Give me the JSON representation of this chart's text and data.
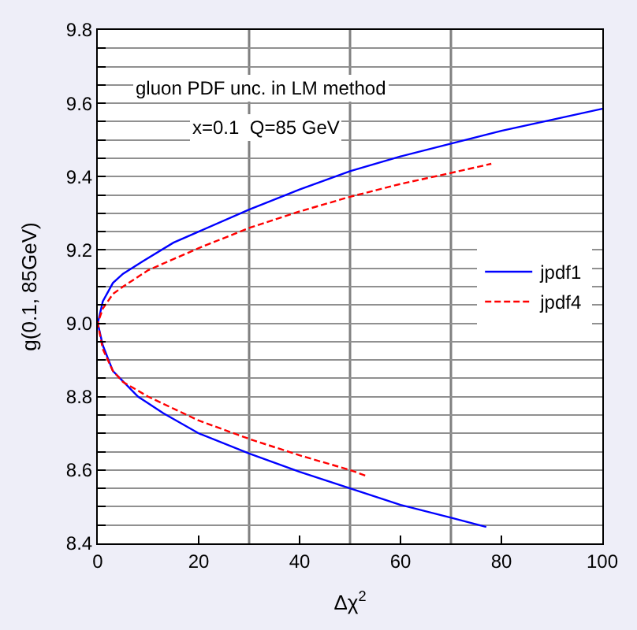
{
  "chart_data": {
    "type": "line",
    "xlabel": "Δχ$^{2}$",
    "ylabel": "g(0.1, 85GeV)",
    "annotations": [
      "gluon PDF unc. in LM method",
      "x=0.1  Q=85 GeV"
    ],
    "series": [
      {
        "name": "jpdf1",
        "color": "#0000ff",
        "line_style": "solid",
        "x": [
          77,
          70,
          60,
          50,
          40,
          30,
          20,
          13,
          8,
          3,
          1,
          0,
          1,
          3,
          5,
          9,
          15,
          20,
          30,
          40,
          50,
          60,
          70,
          80,
          90,
          100
        ],
        "values": [
          8.445,
          8.47,
          8.505,
          8.55,
          8.595,
          8.645,
          8.7,
          8.755,
          8.8,
          8.87,
          8.94,
          9.0,
          9.06,
          9.11,
          9.135,
          9.17,
          9.22,
          9.25,
          9.31,
          9.365,
          9.415,
          9.455,
          9.49,
          9.525,
          9.555,
          9.585
        ]
      },
      {
        "name": "jpdf4",
        "color": "#ff0000",
        "line_style": "dashed",
        "x": [
          53,
          50,
          40,
          30,
          20,
          10,
          5,
          3,
          1,
          0,
          1,
          3,
          5,
          10,
          20,
          30,
          40,
          50,
          60,
          70,
          78
        ],
        "values": [
          8.585,
          8.6,
          8.64,
          8.685,
          8.735,
          8.8,
          8.84,
          8.87,
          8.93,
          9.0,
          9.04,
          9.08,
          9.1,
          9.145,
          9.205,
          9.26,
          9.305,
          9.345,
          9.38,
          9.41,
          9.435
        ]
      }
    ],
    "xlim": [
      0,
      100
    ],
    "xticks": [
      0,
      20,
      40,
      60,
      80,
      100
    ],
    "ylim": [
      8.4,
      9.8
    ],
    "yticks": [
      8.4,
      {
        "value": 8.45,
        "label": null
      },
      {
        "value": 8.5,
        "label": null
      },
      {
        "value": 8.55,
        "label": null
      },
      8.6,
      {
        "value": 8.65,
        "label": null
      },
      {
        "value": 8.7,
        "label": null
      },
      {
        "value": 8.75,
        "label": null
      },
      8.8,
      {
        "value": 8.85,
        "label": null
      },
      {
        "value": 8.9,
        "label": null
      },
      {
        "value": 8.95,
        "label": null
      },
      {
        "value": 9.0,
        "label": "9.0"
      },
      {
        "value": 9.05,
        "label": null
      },
      {
        "value": 9.1,
        "label": null
      },
      {
        "value": 9.15,
        "label": null
      },
      9.2,
      {
        "value": 9.25,
        "label": null
      },
      {
        "value": 9.3,
        "label": null
      },
      {
        "value": 9.35,
        "label": null
      },
      9.4,
      {
        "value": 9.45,
        "label": null
      },
      {
        "value": 9.5,
        "label": null
      },
      {
        "value": 9.55,
        "label": null
      },
      9.6,
      {
        "value": 9.65,
        "label": null
      },
      {
        "value": 9.7,
        "label": null
      },
      {
        "value": 9.75,
        "label": null
      },
      9.8
    ],
    "ref_lines": [
      {
        "axis": "x",
        "value": 30,
        "color": "#808080"
      },
      {
        "axis": "x",
        "value": 50,
        "color": "#808080"
      },
      {
        "axis": "x",
        "value": 70,
        "color": "#808080"
      }
    ],
    "grid": "y",
    "legend": "right",
    "marker": "none"
  }
}
